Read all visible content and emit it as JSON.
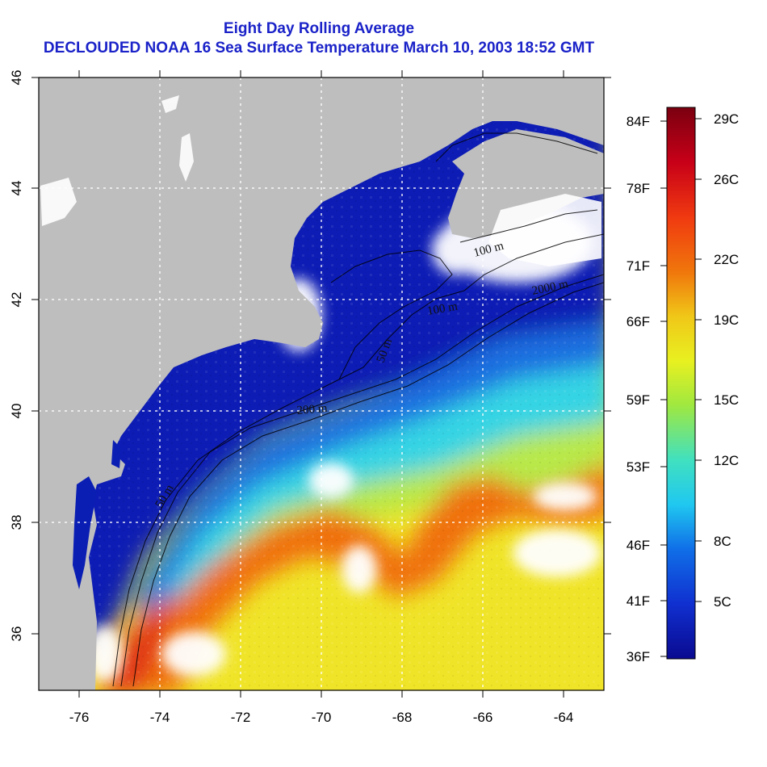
{
  "title": {
    "line1": "Eight Day Rolling Average",
    "line2": "DECLOUDED NOAA 16 Sea Surface Temperature March 10, 2003 18:52 GMT"
  },
  "map": {
    "lon_range": [
      -77,
      -63
    ],
    "lat_range": [
      35,
      46
    ],
    "x_ticks": [
      "-76",
      "-74",
      "-72",
      "-70",
      "-68",
      "-66",
      "-64"
    ],
    "y_ticks": [
      "36",
      "38",
      "40",
      "42",
      "44",
      "46"
    ],
    "grid": "dotted white",
    "contour_labels": [
      "100 m",
      "2000 m",
      "100 m",
      "50 m",
      "200 m",
      "50 m"
    ],
    "colors": {
      "land": "#bebebe",
      "cloud_mask": "#ffffff",
      "cold": "#0a1eb4",
      "cool": "#2ecfe6",
      "mild": "#bfe83a",
      "warm": "#f0d020",
      "hot": "#f07a10"
    }
  },
  "colorbar": {
    "celsius_labels": [
      "29C",
      "26C",
      "22C",
      "19C",
      "15C",
      "12C",
      "8C",
      "5C"
    ],
    "fahrenheit_labels": [
      "84F",
      "78F",
      "71F",
      "66F",
      "59F",
      "53F",
      "46F",
      "41F",
      "36F"
    ],
    "gradient": [
      "#7a0010",
      "#c80018",
      "#f03a10",
      "#f0780c",
      "#f0c818",
      "#e8f020",
      "#a0e840",
      "#40e0c0",
      "#20c8f0",
      "#1070e8",
      "#1030d0",
      "#0a0a90"
    ]
  }
}
